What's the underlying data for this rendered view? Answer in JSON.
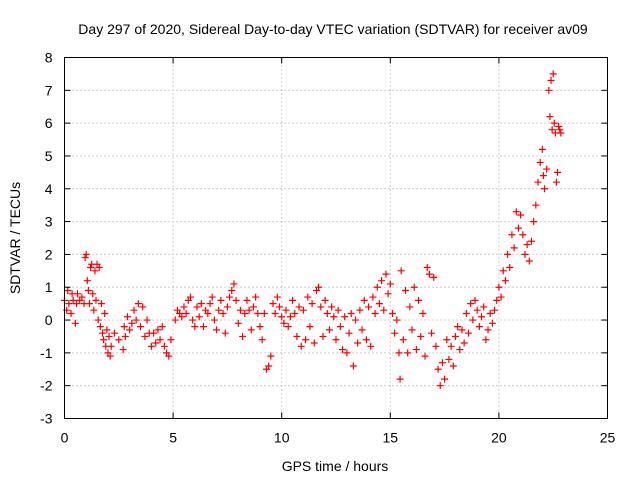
{
  "chart_data": {
    "type": "scatter",
    "title": "Day 297 of 2020, Sidereal Day-to-day VTEC variation (SDTVAR) for receiver av09",
    "xlabel": "GPS time / hours",
    "ylabel": "SDTVAR / TECUs",
    "xlim": [
      0,
      25
    ],
    "ylim": [
      -3,
      8
    ],
    "xticks": [
      0,
      5,
      10,
      15,
      20,
      25
    ],
    "yticks": [
      -3,
      -2,
      -1,
      0,
      1,
      2,
      3,
      4,
      5,
      6,
      7,
      8
    ],
    "grid": true,
    "marker": "+",
    "series_color": "#ff0000",
    "series": [
      {
        "name": "av09",
        "points": [
          [
            0.0,
            0.6
          ],
          [
            0.1,
            0.3
          ],
          [
            0.15,
            0.9
          ],
          [
            0.2,
            0.5
          ],
          [
            0.3,
            0.2
          ],
          [
            0.35,
            0.8
          ],
          [
            0.4,
            0.6
          ],
          [
            0.5,
            -0.1
          ],
          [
            0.55,
            0.5
          ],
          [
            0.6,
            0.8
          ],
          [
            0.7,
            0.6
          ],
          [
            0.8,
            0.7
          ],
          [
            0.9,
            0.5
          ],
          [
            0.95,
            1.9
          ],
          [
            1.0,
            2.0
          ],
          [
            1.05,
            1.2
          ],
          [
            1.1,
            0.9
          ],
          [
            1.15,
            0.5
          ],
          [
            1.2,
            1.6
          ],
          [
            1.25,
            1.7
          ],
          [
            1.3,
            0.8
          ],
          [
            1.35,
            0.3
          ],
          [
            1.4,
            1.5
          ],
          [
            1.45,
            0.6
          ],
          [
            1.5,
            1.7
          ],
          [
            1.55,
            0.0
          ],
          [
            1.6,
            1.6
          ],
          [
            1.65,
            -0.2
          ],
          [
            1.7,
            0.5
          ],
          [
            1.75,
            -0.4
          ],
          [
            1.8,
            -0.6
          ],
          [
            1.85,
            0.2
          ],
          [
            1.9,
            -0.8
          ],
          [
            1.95,
            -0.3
          ],
          [
            2.0,
            -1.0
          ],
          [
            2.05,
            -0.5
          ],
          [
            2.1,
            -1.1
          ],
          [
            2.15,
            -0.8
          ],
          [
            2.3,
            -0.4
          ],
          [
            2.5,
            -0.6
          ],
          [
            2.7,
            -0.9
          ],
          [
            2.75,
            -0.2
          ],
          [
            2.8,
            -0.5
          ],
          [
            2.9,
            0.1
          ],
          [
            3.0,
            -0.3
          ],
          [
            3.1,
            -0.1
          ],
          [
            3.2,
            0.3
          ],
          [
            3.3,
            0.0
          ],
          [
            3.4,
            0.5
          ],
          [
            3.5,
            -0.2
          ],
          [
            3.6,
            0.4
          ],
          [
            3.7,
            -0.5
          ],
          [
            3.8,
            0.0
          ],
          [
            3.9,
            -0.4
          ],
          [
            4.0,
            -0.8
          ],
          [
            4.1,
            -0.4
          ],
          [
            4.2,
            -0.7
          ],
          [
            4.3,
            -0.3
          ],
          [
            4.4,
            -0.6
          ],
          [
            4.5,
            -0.2
          ],
          [
            4.6,
            -0.8
          ],
          [
            4.7,
            -1.0
          ],
          [
            4.8,
            -1.1
          ],
          [
            4.9,
            -0.6
          ],
          [
            5.1,
            0.0
          ],
          [
            5.2,
            0.3
          ],
          [
            5.3,
            0.2
          ],
          [
            5.4,
            0.1
          ],
          [
            5.5,
            0.4
          ],
          [
            5.6,
            0.2
          ],
          [
            5.7,
            0.6
          ],
          [
            5.8,
            0.7
          ],
          [
            5.9,
            0.0
          ],
          [
            6.0,
            -0.2
          ],
          [
            6.1,
            0.4
          ],
          [
            6.2,
            0.1
          ],
          [
            6.3,
            0.5
          ],
          [
            6.4,
            -0.2
          ],
          [
            6.5,
            0.3
          ],
          [
            6.6,
            0.2
          ],
          [
            6.7,
            0.5
          ],
          [
            6.8,
            0.7
          ],
          [
            6.9,
            0.0
          ],
          [
            7.0,
            -0.3
          ],
          [
            7.1,
            0.3
          ],
          [
            7.2,
            0.6
          ],
          [
            7.3,
            0.2
          ],
          [
            7.4,
            -0.4
          ],
          [
            7.5,
            0.4
          ],
          [
            7.6,
            0.7
          ],
          [
            7.7,
            0.9
          ],
          [
            7.8,
            1.1
          ],
          [
            7.9,
            0.6
          ],
          [
            8.0,
            -0.1
          ],
          [
            8.1,
            0.3
          ],
          [
            8.2,
            -0.5
          ],
          [
            8.3,
            0.2
          ],
          [
            8.4,
            0.6
          ],
          [
            8.5,
            0.3
          ],
          [
            8.6,
            -0.3
          ],
          [
            8.7,
            0.4
          ],
          [
            8.8,
            0.7
          ],
          [
            8.9,
            0.2
          ],
          [
            9.0,
            -0.2
          ],
          [
            9.1,
            -0.6
          ],
          [
            9.2,
            0.2
          ],
          [
            9.3,
            -1.5
          ],
          [
            9.4,
            -1.4
          ],
          [
            9.5,
            -1.1
          ],
          [
            9.6,
            0.5
          ],
          [
            9.7,
            0.2
          ],
          [
            9.8,
            0.7
          ],
          [
            9.9,
            0.4
          ],
          [
            10.0,
            0.1
          ],
          [
            10.1,
            -0.1
          ],
          [
            10.2,
            0.3
          ],
          [
            10.3,
            -0.2
          ],
          [
            10.4,
            0.1
          ],
          [
            10.5,
            0.6
          ],
          [
            10.6,
            0.2
          ],
          [
            10.7,
            -0.5
          ],
          [
            10.8,
            0.4
          ],
          [
            10.9,
            -0.8
          ],
          [
            11.0,
            0.3
          ],
          [
            11.1,
            -0.6
          ],
          [
            11.2,
            0.7
          ],
          [
            11.3,
            -0.2
          ],
          [
            11.4,
            0.5
          ],
          [
            11.5,
            -0.7
          ],
          [
            11.6,
            0.9
          ],
          [
            11.7,
            1.0
          ],
          [
            11.8,
            0.4
          ],
          [
            11.9,
            -0.5
          ],
          [
            12.0,
            0.6
          ],
          [
            12.1,
            0.2
          ],
          [
            12.2,
            -0.3
          ],
          [
            12.3,
            0.4
          ],
          [
            12.4,
            0.1
          ],
          [
            12.5,
            -0.6
          ],
          [
            12.6,
            0.3
          ],
          [
            12.7,
            -0.2
          ],
          [
            12.8,
            -0.9
          ],
          [
            12.9,
            0.1
          ],
          [
            13.0,
            -1.0
          ],
          [
            13.1,
            -0.4
          ],
          [
            13.2,
            0.2
          ],
          [
            13.3,
            -1.4
          ],
          [
            13.4,
            0.0
          ],
          [
            13.5,
            -0.7
          ],
          [
            13.6,
            0.3
          ],
          [
            13.7,
            -0.3
          ],
          [
            13.8,
            0.6
          ],
          [
            13.9,
            -0.6
          ],
          [
            14.0,
            0.4
          ],
          [
            14.1,
            -0.8
          ],
          [
            14.2,
            0.7
          ],
          [
            14.3,
            0.2
          ],
          [
            14.4,
            1.0
          ],
          [
            14.5,
            0.5
          ],
          [
            14.6,
            1.2
          ],
          [
            14.7,
            0.3
          ],
          [
            14.8,
            1.4
          ],
          [
            14.9,
            0.8
          ],
          [
            15.0,
            1.1
          ],
          [
            15.1,
            0.2
          ],
          [
            15.2,
            -0.4
          ],
          [
            15.3,
            0.0
          ],
          [
            15.4,
            -1.0
          ],
          [
            15.45,
            -1.8
          ],
          [
            15.5,
            1.5
          ],
          [
            15.6,
            -0.6
          ],
          [
            15.7,
            0.9
          ],
          [
            15.8,
            -1.0
          ],
          [
            15.9,
            0.4
          ],
          [
            16.0,
            -0.3
          ],
          [
            16.1,
            1.0
          ],
          [
            16.2,
            -0.9
          ],
          [
            16.3,
            0.6
          ],
          [
            16.4,
            -0.5
          ],
          [
            16.5,
            0.2
          ],
          [
            16.6,
            -1.1
          ],
          [
            16.7,
            1.6
          ],
          [
            16.8,
            1.4
          ],
          [
            16.9,
            -0.4
          ],
          [
            17.0,
            1.3
          ],
          [
            17.1,
            -0.8
          ],
          [
            17.2,
            -1.5
          ],
          [
            17.3,
            -2.0
          ],
          [
            17.4,
            -1.3
          ],
          [
            17.5,
            -1.8
          ],
          [
            17.6,
            -0.6
          ],
          [
            17.7,
            -1.2
          ],
          [
            17.8,
            -0.8
          ],
          [
            17.9,
            -1.4
          ],
          [
            18.0,
            -0.5
          ],
          [
            18.1,
            -0.2
          ],
          [
            18.2,
            -0.9
          ],
          [
            18.3,
            -0.3
          ],
          [
            18.4,
            -0.7
          ],
          [
            18.5,
            0.2
          ],
          [
            18.6,
            -0.4
          ],
          [
            18.7,
            0.5
          ],
          [
            18.8,
            0.0
          ],
          [
            18.9,
            0.6
          ],
          [
            19.0,
            0.3
          ],
          [
            19.1,
            -0.2
          ],
          [
            19.2,
            0.1
          ],
          [
            19.3,
            0.4
          ],
          [
            19.4,
            -0.6
          ],
          [
            19.5,
            -0.3
          ],
          [
            19.6,
            0.2
          ],
          [
            19.7,
            -0.1
          ],
          [
            19.8,
            0.3
          ],
          [
            19.9,
            0.6
          ],
          [
            20.0,
            1.0
          ],
          [
            20.1,
            0.7
          ],
          [
            20.2,
            1.5
          ],
          [
            20.3,
            1.2
          ],
          [
            20.4,
            2.0
          ],
          [
            20.5,
            1.6
          ],
          [
            20.6,
            2.6
          ],
          [
            20.7,
            2.2
          ],
          [
            20.8,
            3.3
          ],
          [
            20.9,
            2.8
          ],
          [
            21.0,
            3.2
          ],
          [
            21.1,
            2.6
          ],
          [
            21.2,
            2.0
          ],
          [
            21.3,
            2.3
          ],
          [
            21.4,
            1.8
          ],
          [
            21.5,
            2.4
          ],
          [
            21.6,
            3.0
          ],
          [
            21.7,
            3.5
          ],
          [
            21.8,
            4.2
          ],
          [
            21.9,
            4.8
          ],
          [
            22.0,
            5.2
          ],
          [
            22.05,
            4.4
          ],
          [
            22.1,
            4.0
          ],
          [
            22.2,
            4.6
          ],
          [
            22.3,
            7.0
          ],
          [
            22.35,
            6.2
          ],
          [
            22.4,
            7.3
          ],
          [
            22.45,
            5.8
          ],
          [
            22.5,
            7.5
          ],
          [
            22.55,
            6.0
          ],
          [
            22.6,
            5.7
          ],
          [
            22.65,
            4.2
          ],
          [
            22.7,
            4.5
          ],
          [
            22.75,
            5.9
          ],
          [
            22.8,
            5.8
          ],
          [
            22.85,
            5.7
          ]
        ]
      }
    ]
  }
}
